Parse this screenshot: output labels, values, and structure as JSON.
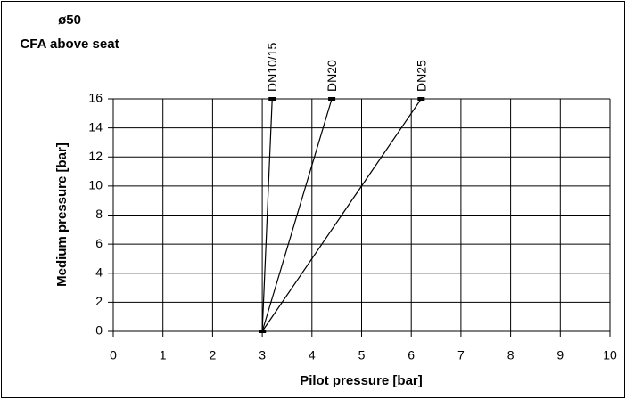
{
  "chart_data": {
    "type": "line",
    "title": "ø50",
    "subtitle": "CFA above seat",
    "x_label": "Pilot pressure [bar]",
    "y_label": "Medium pressure [bar]",
    "series": [
      {
        "name": "DN10/15",
        "color": "#000000",
        "x": [
          3,
          3.2
        ],
        "values": [
          0,
          16
        ]
      },
      {
        "name": "DN20",
        "color": "#000000",
        "x": [
          3,
          4.4
        ],
        "values": [
          0,
          16
        ]
      },
      {
        "name": "DN25",
        "color": "#000000",
        "x": [
          3,
          6.2
        ],
        "values": [
          0,
          16
        ]
      }
    ],
    "xlim": [
      0,
      10
    ],
    "xticks": [
      0,
      1,
      2,
      3,
      4,
      5,
      6,
      7,
      8,
      9,
      10
    ],
    "ylim": [
      0,
      16
    ],
    "yticks": [
      0,
      2,
      4,
      6,
      8,
      10,
      12,
      14,
      16
    ],
    "grid": true
  }
}
